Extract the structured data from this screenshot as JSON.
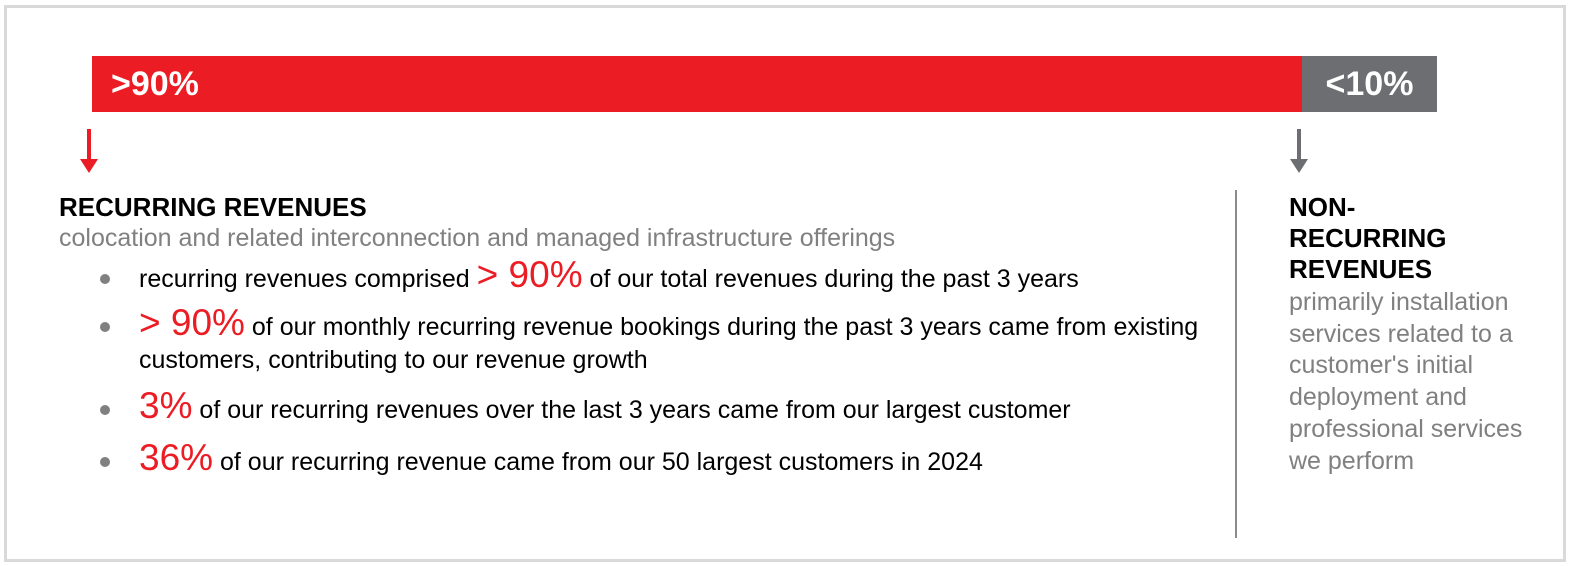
{
  "split_bar": {
    "recurring": {
      "label": ">90%",
      "share": 0.9,
      "color": "#ec1c24"
    },
    "non_recurring": {
      "label": "<10%",
      "share": 0.1,
      "color": "#6d6e71"
    }
  },
  "recurring": {
    "heading": "RECURRING REVENUES",
    "subheading": "colocation and related interconnection and managed infrastructure offerings",
    "bullets": [
      {
        "pre": "recurring revenues comprised ",
        "highlight": "> 90%",
        "post": " of our total revenues during the past 3 years"
      },
      {
        "pre": "",
        "highlight": "> 90%",
        "post": " of our monthly recurring revenue bookings during the past 3 years came from existing customers, contributing to our revenue growth"
      },
      {
        "pre": "",
        "highlight": "3%",
        "post": " of our recurring revenues over the last 3 years came from our largest customer"
      },
      {
        "pre": "",
        "highlight": "36%",
        "post": " of our recurring revenue came from our 50 largest customers in 2024"
      }
    ]
  },
  "non_recurring": {
    "heading_lines": [
      "NON-",
      "RECURRING",
      "REVENUES"
    ],
    "description": "primarily installation services related to a customer's initial deployment and professional services we perform"
  },
  "icons": {
    "recurring_arrow": "arrow-down-icon",
    "non_recurring_arrow": "arrow-down-icon"
  },
  "colors": {
    "accent": "#ec1c24",
    "gray": "#6d6e71",
    "muted_text": "#808080"
  }
}
